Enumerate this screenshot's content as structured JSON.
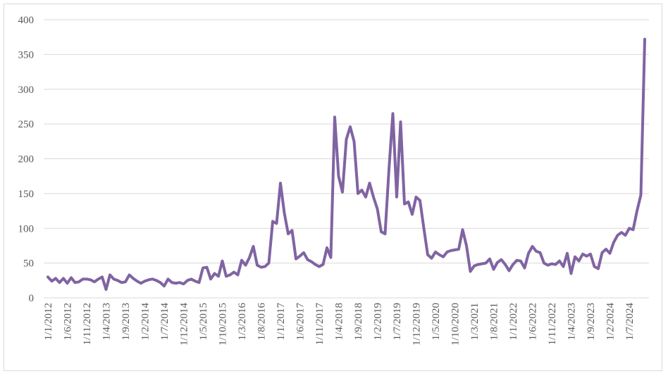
{
  "chart_data": {
    "type": "line",
    "categories": [
      "1/1/2012",
      null,
      null,
      null,
      null,
      "1/6/2012",
      null,
      null,
      null,
      null,
      "1/11/2012",
      null,
      null,
      null,
      null,
      "1/4/2013",
      null,
      null,
      null,
      null,
      "1/9/2013",
      null,
      null,
      null,
      null,
      "1/2/2014",
      null,
      null,
      null,
      null,
      "1/7/2014",
      null,
      null,
      null,
      null,
      "1/12/2014",
      null,
      null,
      null,
      null,
      "1/5/2015",
      null,
      null,
      null,
      null,
      "1/10/2015",
      null,
      null,
      null,
      null,
      "1/3/2016",
      null,
      null,
      null,
      null,
      "1/8/2016",
      null,
      null,
      null,
      null,
      "1/1/2017",
      null,
      null,
      null,
      null,
      "1/6/2017",
      null,
      null,
      null,
      null,
      "1/11/2017",
      null,
      null,
      null,
      null,
      "1/4/2018",
      null,
      null,
      null,
      null,
      "1/9/2018",
      null,
      null,
      null,
      null,
      "1/2/2019",
      null,
      null,
      null,
      null,
      "1/7/2019",
      null,
      null,
      null,
      null,
      "1/12/2019",
      null,
      null,
      null,
      null,
      "1/5/2020",
      null,
      null,
      null,
      null,
      "1/10/2020",
      null,
      null,
      null,
      null,
      "1/3/2021",
      null,
      null,
      null,
      null,
      "1/8/2021",
      null,
      null,
      null,
      null,
      "1/1/2022",
      null,
      null,
      null,
      null,
      "1/6/2022",
      null,
      null,
      null,
      null,
      "1/11/2022",
      null,
      null,
      null,
      null,
      "1/4/2023",
      null,
      null,
      null,
      null,
      "1/9/2023",
      null,
      null,
      null,
      null,
      "1/2/2024",
      null,
      null,
      null,
      null,
      "1/7/2024",
      null,
      null,
      null,
      null
    ],
    "values": [
      30,
      24,
      28,
      22,
      28,
      21,
      29,
      22,
      23,
      27,
      27,
      26,
      23,
      27,
      30,
      12,
      33,
      27,
      25,
      22,
      23,
      33,
      28,
      24,
      21,
      24,
      26,
      27,
      25,
      22,
      17,
      27,
      22,
      21,
      22,
      20,
      25,
      27,
      24,
      22,
      43,
      44,
      27,
      35,
      31,
      53,
      31,
      33,
      37,
      33,
      54,
      47,
      58,
      74,
      47,
      44,
      45,
      50,
      110,
      107,
      165,
      122,
      92,
      97,
      56,
      60,
      65,
      55,
      52,
      48,
      45,
      48,
      72,
      58,
      260,
      175,
      152,
      228,
      246,
      225,
      150,
      155,
      145,
      165,
      145,
      128,
      95,
      92,
      185,
      265,
      145,
      253,
      135,
      138,
      120,
      145,
      140,
      100,
      62,
      57,
      66,
      62,
      59,
      66,
      68,
      69,
      70,
      98,
      75,
      38,
      46,
      48,
      49,
      50,
      56,
      41,
      51,
      55,
      48,
      39,
      48,
      54,
      53,
      43,
      64,
      74,
      67,
      65,
      50,
      47,
      49,
      48,
      53,
      45,
      64,
      35,
      59,
      53,
      63,
      60,
      63,
      45,
      42,
      65,
      70,
      64,
      80,
      90,
      94,
      90,
      100,
      98,
      125,
      148,
      372
    ],
    "color": "#8064a2",
    "ylim": [
      0,
      400
    ],
    "yticks": [
      0,
      50,
      100,
      150,
      200,
      250,
      300,
      350,
      400
    ],
    "grid": true
  }
}
